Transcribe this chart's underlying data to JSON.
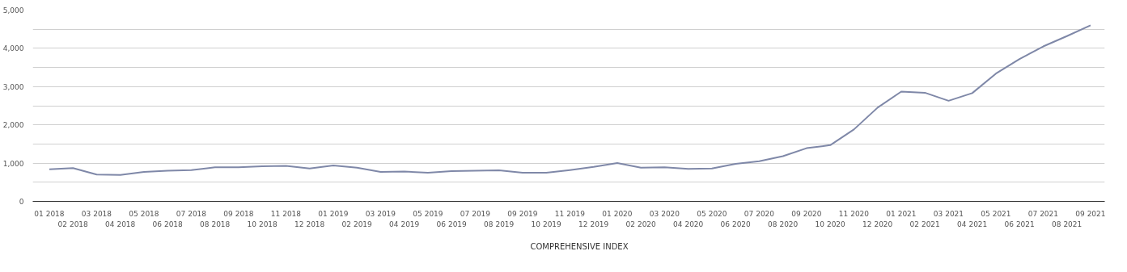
{
  "chart_data": {
    "type": "line",
    "categories": [
      "01 2018",
      "02 2018",
      "03 2018",
      "04 2018",
      "05 2018",
      "06 2018",
      "07 2018",
      "08 2018",
      "09 2018",
      "10 2018",
      "11 2018",
      "12 2018",
      "01 2019",
      "02 2019",
      "03 2019",
      "04 2019",
      "05 2019",
      "06 2019",
      "07 2019",
      "08 2019",
      "09 2019",
      "10 2019",
      "11 2019",
      "12 2019",
      "01 2020",
      "02 2020",
      "03 2020",
      "04 2020",
      "05 2020",
      "06 2020",
      "07 2020",
      "08 2020",
      "09 2020",
      "10 2020",
      "11 2020",
      "12 2020",
      "01 2021",
      "02 2021",
      "03 2021",
      "04 2021",
      "05 2021",
      "06 2021",
      "07 2021",
      "08 2021",
      "09 2021"
    ],
    "series": [
      {
        "name": "COMPREHENSIVE INDEX",
        "color": "#7f88a8",
        "values": [
          840,
          870,
          700,
          690,
          770,
          800,
          820,
          890,
          890,
          920,
          930,
          860,
          940,
          880,
          770,
          780,
          750,
          790,
          800,
          810,
          750,
          750,
          820,
          900,
          1000,
          880,
          890,
          850,
          860,
          980,
          1050,
          1180,
          1390,
          1470,
          1880,
          2450,
          2870,
          2840,
          2630,
          2830,
          3340,
          3720,
          4050,
          4320,
          4600
        ]
      }
    ],
    "ylim": [
      0,
      5000
    ],
    "yticks": [
      0,
      {
        "value": 500,
        "label": null
      },
      {
        "value": 1000,
        "label": "1,000"
      },
      {
        "value": 1500,
        "label": null
      },
      {
        "value": 2000,
        "label": "2,000"
      },
      {
        "value": 2500,
        "label": null
      },
      {
        "value": 3000,
        "label": "3,000"
      },
      {
        "value": 3500,
        "label": null
      },
      {
        "value": 4000,
        "label": "4,000"
      },
      {
        "value": 4500,
        "label": null
      },
      {
        "value": 5000,
        "label": "5,000"
      }
    ],
    "grid": "y",
    "legend": "bottom",
    "marker": "none",
    "line_style": "solid"
  }
}
